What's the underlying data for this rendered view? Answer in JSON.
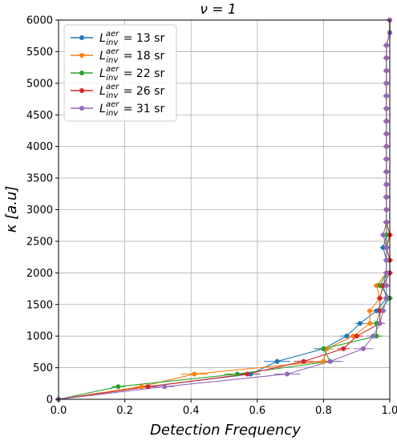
{
  "chart_data": {
    "type": "line",
    "title": "ν = 1",
    "xlabel": "Detection Frequency",
    "ylabel": "κ [a.u]",
    "xlim": [
      0.0,
      1.0
    ],
    "ylim": [
      0,
      6000
    ],
    "xticks": [
      {
        "value": 0.0,
        "label": "0.0"
      },
      {
        "value": 0.2,
        "label": "0.2"
      },
      {
        "value": 0.4,
        "label": "0.4"
      },
      {
        "value": 0.6,
        "label": "0.6"
      },
      {
        "value": 0.8,
        "label": "0.8"
      },
      {
        "value": 1.0,
        "label": "1.0"
      }
    ],
    "yticks": [
      {
        "value": 0,
        "label": "0"
      },
      {
        "value": 500,
        "label": "500"
      },
      {
        "value": 1000,
        "label": "1000"
      },
      {
        "value": 1500,
        "label": "1500"
      },
      {
        "value": 2000,
        "label": "2000"
      },
      {
        "value": 2500,
        "label": "2500"
      },
      {
        "value": 3000,
        "label": "3000"
      },
      {
        "value": 3500,
        "label": "3500"
      },
      {
        "value": 4000,
        "label": "4000"
      },
      {
        "value": 4500,
        "label": "4500"
      },
      {
        "value": 5000,
        "label": "5000"
      },
      {
        "value": 5500,
        "label": "5500"
      },
      {
        "value": 6000,
        "label": "6000"
      }
    ],
    "grid": true,
    "legend_position": "top-left",
    "y": [
      0,
      200,
      400,
      600,
      800,
      1000,
      1200,
      1400,
      1600,
      1800,
      2000,
      2200,
      2400,
      2600,
      2800,
      3000,
      3200,
      3400,
      3600,
      3800,
      4000,
      4200,
      4400,
      4600,
      4800,
      5000,
      5200,
      5400,
      5600,
      5800,
      6000
    ],
    "series": [
      {
        "name": "13 sr",
        "color": "#1f77b4",
        "x": [
          0.0,
          0.27,
          0.58,
          0.66,
          0.8,
          0.87,
          0.91,
          0.96,
          0.99,
          0.98,
          0.99,
          0.99,
          0.98,
          0.99,
          0.99,
          0.99,
          0.99,
          0.99,
          0.99,
          0.99,
          0.99,
          0.99,
          0.99,
          0.99,
          0.99,
          0.99,
          0.99,
          0.99,
          0.99,
          1.0,
          1.0
        ],
        "xerr": [
          0,
          0.02,
          0.03,
          0.04,
          0.03,
          0.02,
          0.015,
          0.01,
          0.01,
          0.01,
          0.01,
          0.01,
          0.01,
          0.01,
          0.01,
          0.01,
          0.01,
          0.01,
          0.01,
          0.01,
          0.01,
          0.01,
          0.01,
          0.01,
          0.01,
          0.01,
          0.01,
          0.01,
          0.01,
          0,
          0
        ]
      },
      {
        "name": "18 sr",
        "color": "#ff7f0e",
        "x": [
          0.0,
          0.25,
          0.41,
          0.8,
          0.81,
          0.89,
          0.94,
          0.94,
          0.97,
          0.96,
          0.99,
          0.99,
          0.99,
          0.99,
          0.99,
          0.99,
          0.99,
          0.99,
          0.99,
          0.99,
          0.99,
          0.99,
          0.99,
          0.99,
          0.99,
          0.99,
          0.99,
          0.99,
          0.99,
          1.0,
          1.0
        ],
        "xerr": [
          0,
          0.02,
          0.04,
          0.03,
          0.02,
          0.02,
          0.015,
          0.01,
          0.01,
          0.01,
          0.01,
          0.01,
          0.01,
          0.01,
          0.01,
          0.01,
          0.01,
          0.01,
          0.01,
          0.01,
          0.01,
          0.01,
          0.01,
          0.01,
          0.01,
          0.01,
          0.01,
          0.01,
          0.01,
          0,
          0
        ]
      },
      {
        "name": "22 sr",
        "color": "#2ca02c",
        "x": [
          0.0,
          0.18,
          0.54,
          0.82,
          0.8,
          0.96,
          0.96,
          0.97,
          1.0,
          0.97,
          0.99,
          0.99,
          0.99,
          0.99,
          0.99,
          0.99,
          0.99,
          0.99,
          0.99,
          0.99,
          0.99,
          0.99,
          0.99,
          0.99,
          0.99,
          0.99,
          0.99,
          0.99,
          0.99,
          1.0,
          1.0
        ],
        "xerr": [
          0,
          0.02,
          0.04,
          0.03,
          0.02,
          0.02,
          0.015,
          0.01,
          0.01,
          0.01,
          0.01,
          0.01,
          0.01,
          0.01,
          0.01,
          0.01,
          0.01,
          0.01,
          0.01,
          0.01,
          0.01,
          0.01,
          0.01,
          0.01,
          0.01,
          0.01,
          0.01,
          0.01,
          0.01,
          0,
          0
        ]
      },
      {
        "name": "26 sr",
        "color": "#d62728",
        "x": [
          0.0,
          0.27,
          0.57,
          0.74,
          0.86,
          0.9,
          0.97,
          0.97,
          0.97,
          0.98,
          1.0,
          1.0,
          0.99,
          1.0,
          0.99,
          0.99,
          0.99,
          0.99,
          0.99,
          0.99,
          0.99,
          0.99,
          0.99,
          0.99,
          0.99,
          0.99,
          0.99,
          0.99,
          0.99,
          1.0,
          1.0
        ],
        "xerr": [
          0,
          0.02,
          0.03,
          0.03,
          0.02,
          0.02,
          0.015,
          0.01,
          0.01,
          0.01,
          0.01,
          0.01,
          0.01,
          0.01,
          0.01,
          0.01,
          0.01,
          0.01,
          0.01,
          0.01,
          0.01,
          0.01,
          0.01,
          0.01,
          0.01,
          0.01,
          0.01,
          0.01,
          0.01,
          0,
          0
        ]
      },
      {
        "name": "31 sr",
        "color": "#9467bd",
        "x": [
          0.0,
          0.32,
          0.69,
          0.82,
          0.92,
          0.95,
          0.97,
          0.98,
          0.99,
          0.99,
          0.99,
          0.99,
          0.99,
          0.98,
          0.99,
          0.99,
          0.99,
          0.99,
          0.99,
          0.99,
          0.99,
          0.99,
          0.99,
          0.99,
          0.99,
          0.99,
          0.99,
          0.99,
          0.99,
          1.0,
          1.0
        ],
        "xerr": [
          0,
          0.03,
          0.04,
          0.04,
          0.03,
          0.02,
          0.015,
          0.01,
          0.01,
          0.01,
          0.01,
          0.01,
          0.01,
          0.01,
          0.01,
          0.01,
          0.01,
          0.01,
          0.01,
          0.01,
          0.01,
          0.01,
          0.01,
          0.01,
          0.01,
          0.01,
          0.01,
          0.01,
          0.01,
          0,
          0
        ]
      }
    ]
  }
}
